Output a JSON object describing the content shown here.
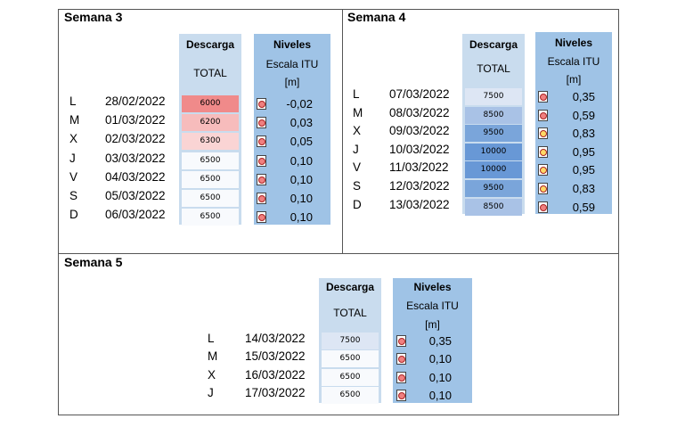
{
  "header_desc": "Descarga",
  "header_total": "TOTAL",
  "header_niv": "Niveles",
  "header_escala": "Escala ITU",
  "header_unit": "[m]",
  "colors": {
    "red": "#f08080",
    "yellow": "#ffd966",
    "frame": "#555555"
  },
  "weeks": [
    {
      "title": "Semana 3",
      "rows": [
        {
          "day": "L",
          "date": "28/02/2022",
          "descarga": "6000",
          "nivel": "-0,02",
          "ind": "red",
          "bg": "#f08a8a"
        },
        {
          "day": "M",
          "date": "01/03/2022",
          "descarga": "6200",
          "nivel": "0,03",
          "ind": "red",
          "bg": "#f7bcbc"
        },
        {
          "day": "X",
          "date": "02/03/2022",
          "descarga": "6300",
          "nivel": "0,05",
          "ind": "red",
          "bg": "#fad4d4"
        },
        {
          "day": "J",
          "date": "03/03/2022",
          "descarga": "6500",
          "nivel": "0,10",
          "ind": "red",
          "bg": "#f8fafd"
        },
        {
          "day": "V",
          "date": "04/03/2022",
          "descarga": "6500",
          "nivel": "0,10",
          "ind": "red",
          "bg": "#f8fafd"
        },
        {
          "day": "S",
          "date": "05/03/2022",
          "descarga": "6500",
          "nivel": "0,10",
          "ind": "red",
          "bg": "#f8fafd"
        },
        {
          "day": "D",
          "date": "06/03/2022",
          "descarga": "6500",
          "nivel": "0,10",
          "ind": "red",
          "bg": "#f8fafd"
        }
      ]
    },
    {
      "title": "Semana 4",
      "rows": [
        {
          "day": "L",
          "date": "07/03/2022",
          "descarga": "7500",
          "nivel": "0,35",
          "ind": "red",
          "bg": "#dde6f4"
        },
        {
          "day": "M",
          "date": "08/03/2022",
          "descarga": "8500",
          "nivel": "0,59",
          "ind": "red",
          "bg": "#a9c2e6"
        },
        {
          "day": "X",
          "date": "09/03/2022",
          "descarga": "9500",
          "nivel": "0,83",
          "ind": "yellow",
          "bg": "#7aa5da"
        },
        {
          "day": "J",
          "date": "10/03/2022",
          "descarga": "10000",
          "nivel": "0,95",
          "ind": "yellow",
          "bg": "#6898d6"
        },
        {
          "day": "V",
          "date": "11/03/2022",
          "descarga": "10000",
          "nivel": "0,95",
          "ind": "yellow",
          "bg": "#6898d6"
        },
        {
          "day": "S",
          "date": "12/03/2022",
          "descarga": "9500",
          "nivel": "0,83",
          "ind": "yellow",
          "bg": "#7aa5da"
        },
        {
          "day": "D",
          "date": "13/03/2022",
          "descarga": "8500",
          "nivel": "0,59",
          "ind": "red",
          "bg": "#a9c2e6"
        }
      ]
    },
    {
      "title": "Semana 5",
      "rows": [
        {
          "day": "L",
          "date": "14/03/2022",
          "descarga": "7500",
          "nivel": "0,35",
          "ind": "red",
          "bg": "#dde6f4"
        },
        {
          "day": "M",
          "date": "15/03/2022",
          "descarga": "6500",
          "nivel": "0,10",
          "ind": "red",
          "bg": "#f8fafd"
        },
        {
          "day": "X",
          "date": "16/03/2022",
          "descarga": "6500",
          "nivel": "0,10",
          "ind": "red",
          "bg": "#f8fafd"
        },
        {
          "day": "J",
          "date": "17/03/2022",
          "descarga": "6500",
          "nivel": "0,10",
          "ind": "red",
          "bg": "#f8fafd"
        }
      ]
    }
  ]
}
